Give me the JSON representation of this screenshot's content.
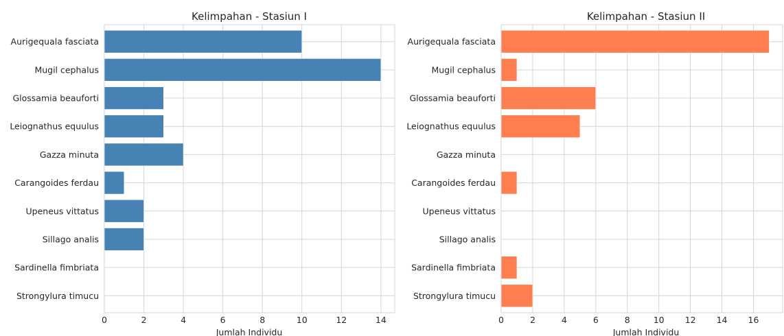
{
  "chart_data": [
    {
      "type": "bar",
      "orientation": "horizontal",
      "title": "Kelimpahan - Stasiun I",
      "xlabel": "Jumlah Individu",
      "ylabel": "",
      "categories": [
        "Aurigequala fasciata",
        "Mugil cephalus",
        "Glossamia beauforti",
        "Leiognathus equulus",
        "Gazza minuta",
        "Carangoides ferdau",
        "Upeneus vittatus",
        "Sillago analis",
        "Sardinella fimbriata",
        "Strongylura timucu"
      ],
      "values": [
        10,
        14,
        3,
        3,
        4,
        1,
        2,
        2,
        0,
        0
      ],
      "xlim": [
        0,
        14.7
      ],
      "xticks": [
        0,
        2,
        4,
        6,
        8,
        10,
        12,
        14
      ],
      "color": "#4682b4",
      "grid": true
    },
    {
      "type": "bar",
      "orientation": "horizontal",
      "title": "Kelimpahan - Stasiun II",
      "xlabel": "Jumlah Individu",
      "ylabel": "",
      "categories": [
        "Aurigequala fasciata",
        "Mugil cephalus",
        "Glossamia beauforti",
        "Leiognathus equulus",
        "Gazza minuta",
        "Carangoides ferdau",
        "Upeneus vittatus",
        "Sillago analis",
        "Sardinella fimbriata",
        "Strongylura timucu"
      ],
      "values": [
        17,
        1,
        6,
        5,
        0,
        1,
        0,
        0,
        1,
        2
      ],
      "xlim": [
        0,
        17.85
      ],
      "xticks": [
        0,
        2,
        4,
        6,
        8,
        10,
        12,
        14,
        16
      ],
      "color": "#ff7f50",
      "grid": true
    }
  ]
}
